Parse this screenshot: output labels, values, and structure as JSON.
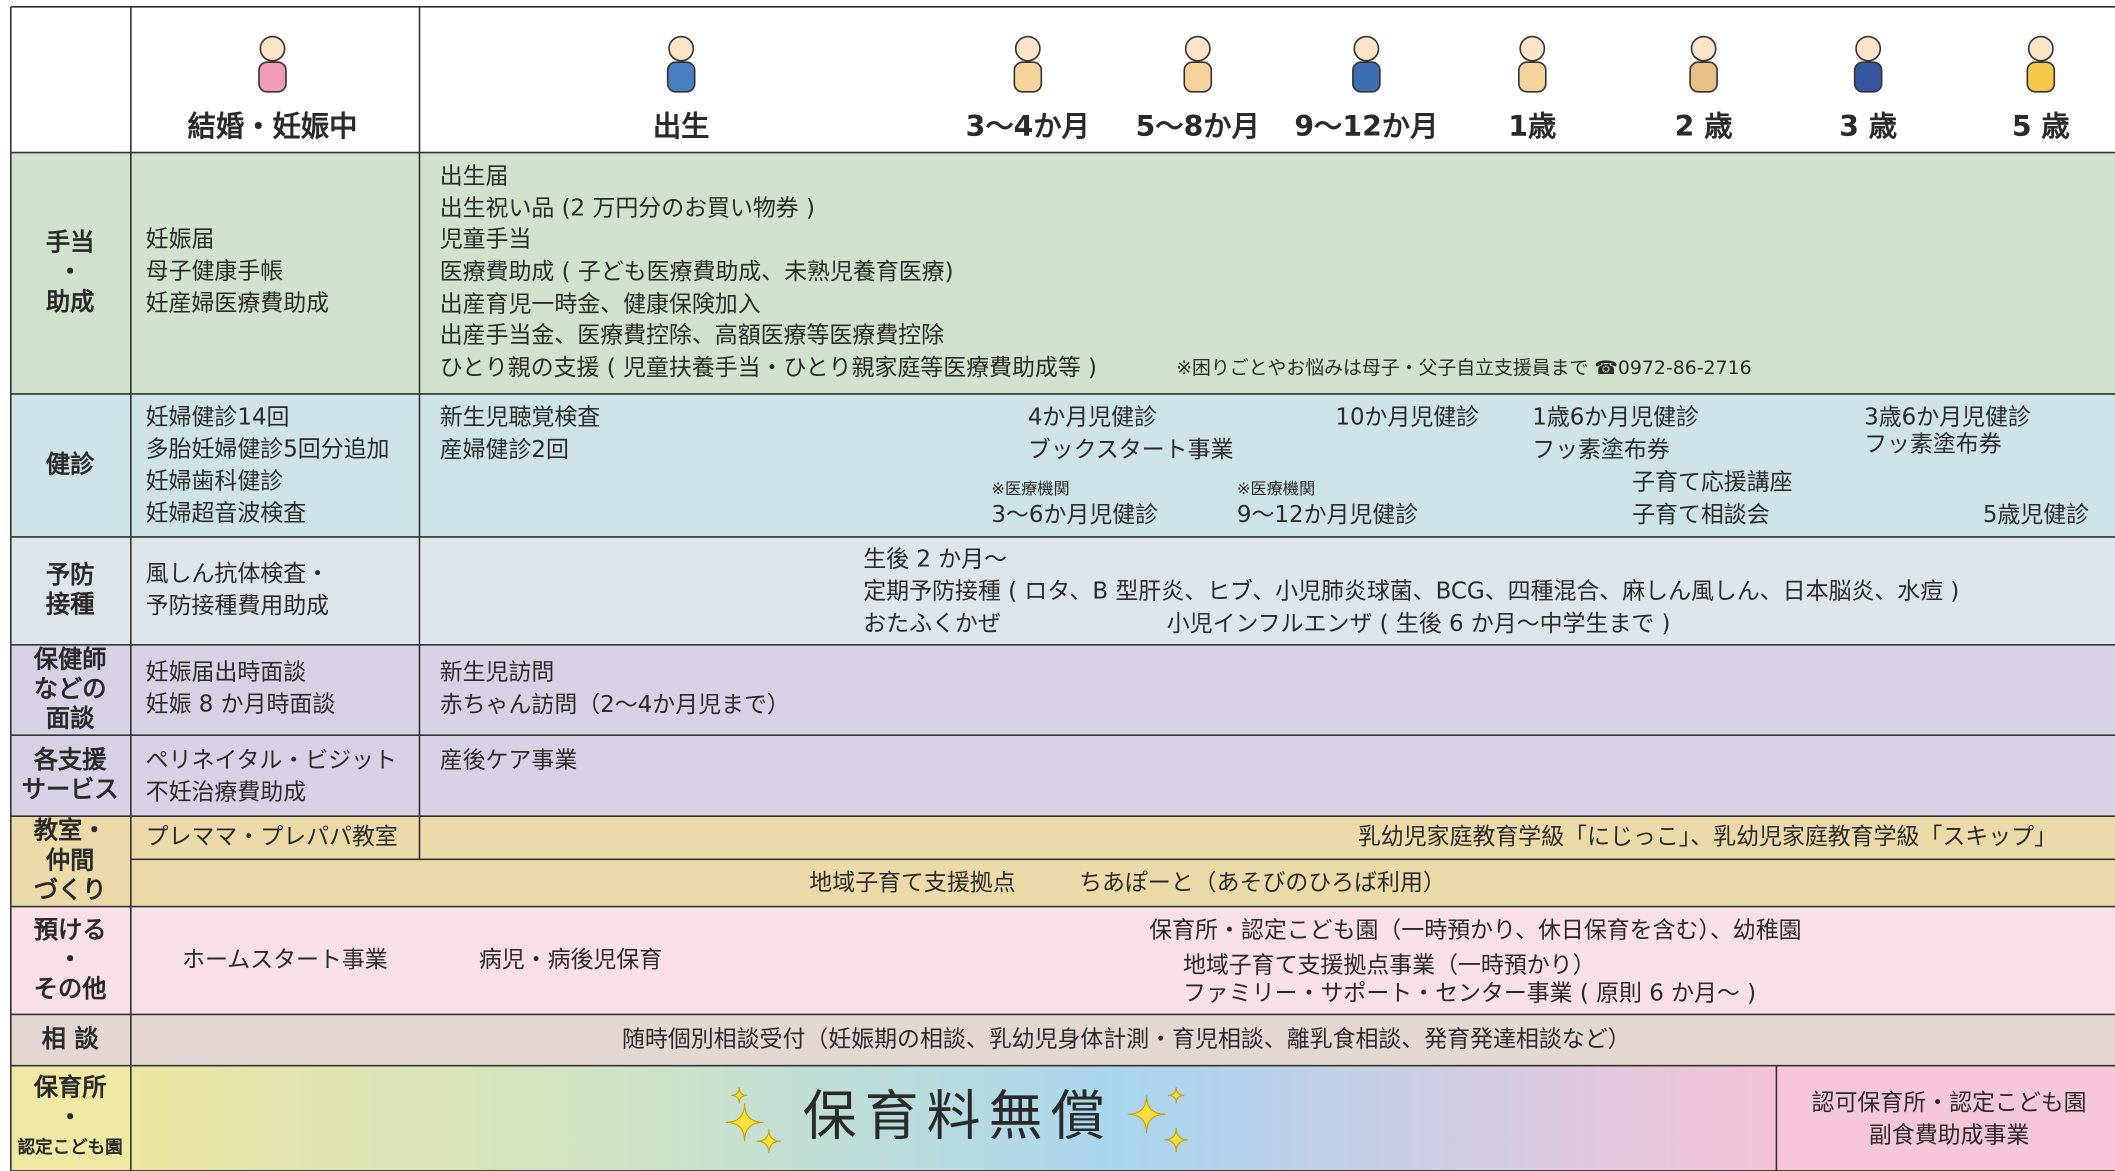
{
  "header": {
    "stages": [
      "結婚・妊娠中",
      "出生",
      "3〜4か月",
      "5〜8か月",
      "9〜12か月",
      "1歳",
      "2 歳",
      "3 歳",
      "5 歳"
    ]
  },
  "rows": [
    {
      "label": [
        "手当",
        "・",
        "助成"
      ],
      "left": [
        "妊娠届",
        "母子健康手帳",
        "妊産婦医療費助成"
      ],
      "items": [
        "出生届",
        "出生祝い品 (2 万円分のお買い物券 )",
        "児童手当",
        "医療費助成 ( 子ども医療費助成、未熟児養育医療)",
        "出産育児一時金、健康保険加入",
        "出産手当金、医療費控除、高額医療等医療費控除",
        "ひとり親の支援 ( 児童扶養手当・ひとり親家庭等医療費助成等 )",
        "※困りごとやお悩みは母子・父子自立支援員まで ☎0972-86-2716"
      ]
    },
    {
      "label": [
        "健診"
      ],
      "left": [
        "妊婦健診14回",
        "多胎妊婦健診5回分追加",
        "妊婦歯科健診",
        "妊婦超音波検査"
      ],
      "items": [
        "新生児聴覚検査",
        "産婦健診2回",
        "4か月児健診",
        "ブックスタート事業",
        "10か月児健診",
        "1歳6か月児健診",
        "フッ素塗布券",
        "3歳6か月児健診",
        "フッ素塗布券",
        "※医療機関",
        "3〜6か月児健診",
        "※医療機関",
        "9〜12か月児健診",
        "子育て応援講座",
        "子育て相談会",
        "5歳児健診"
      ]
    },
    {
      "label": [
        "予防",
        "接種"
      ],
      "left": [
        "風しん抗体検査・",
        "予防接種費用助成"
      ],
      "items": [
        "生後 2 か月〜",
        "定期予防接種 ( ロタ、B 型肝炎、ヒブ、小児肺炎球菌、BCG、四種混合、麻しん風しん、日本脳炎、水痘 )",
        "おたふくかぜ",
        "小児インフルエンザ ( 生後 6 か月〜中学生まで )"
      ]
    },
    {
      "label": [
        "保健師",
        "などの",
        "面談"
      ],
      "left": [
        "妊娠届出時面談",
        "妊娠 8 か月時面談"
      ],
      "items": [
        "新生児訪問",
        "赤ちゃん訪問（2〜4か月児まで）"
      ]
    },
    {
      "label": [
        "各支援",
        "サービス"
      ],
      "left": [
        "ペリネイタル・ビジット",
        "不妊治療費助成"
      ],
      "items": [
        "産後ケア事業"
      ]
    },
    {
      "label": [
        "教室・",
        "仲間",
        "づくり"
      ],
      "left": [
        "プレママ・プレパパ教室"
      ],
      "items": [
        "乳幼児家庭教育学級「にじっこ」、乳幼児家庭教育学級「スキップ」",
        "地域子育て支援拠点",
        "ちあぽーと（あそびのひろば利用）"
      ]
    },
    {
      "label": [
        "預ける",
        "・",
        "その他"
      ],
      "items": [
        "ホームスタート事業",
        "病児・病後児保育",
        "保育所・認定こども園（一時預かり、休日保育を含む）、幼稚園",
        "地域子育て支援拠点事業（一時預かり）",
        "ファミリー・サポート・センター事業 ( 原則 6 か月〜 )"
      ]
    },
    {
      "label": [
        "相 談"
      ],
      "items": [
        "随時個別相談受付（妊娠期の相談、乳幼児身体計測・育児相談、離乳食相談、発育発達相談など）"
      ]
    },
    {
      "label": [
        "保育所",
        "・",
        "認定こども園"
      ],
      "items": [
        "保育料無償",
        "認可保育所・認定こども園",
        "副食費助成事業"
      ]
    }
  ]
}
